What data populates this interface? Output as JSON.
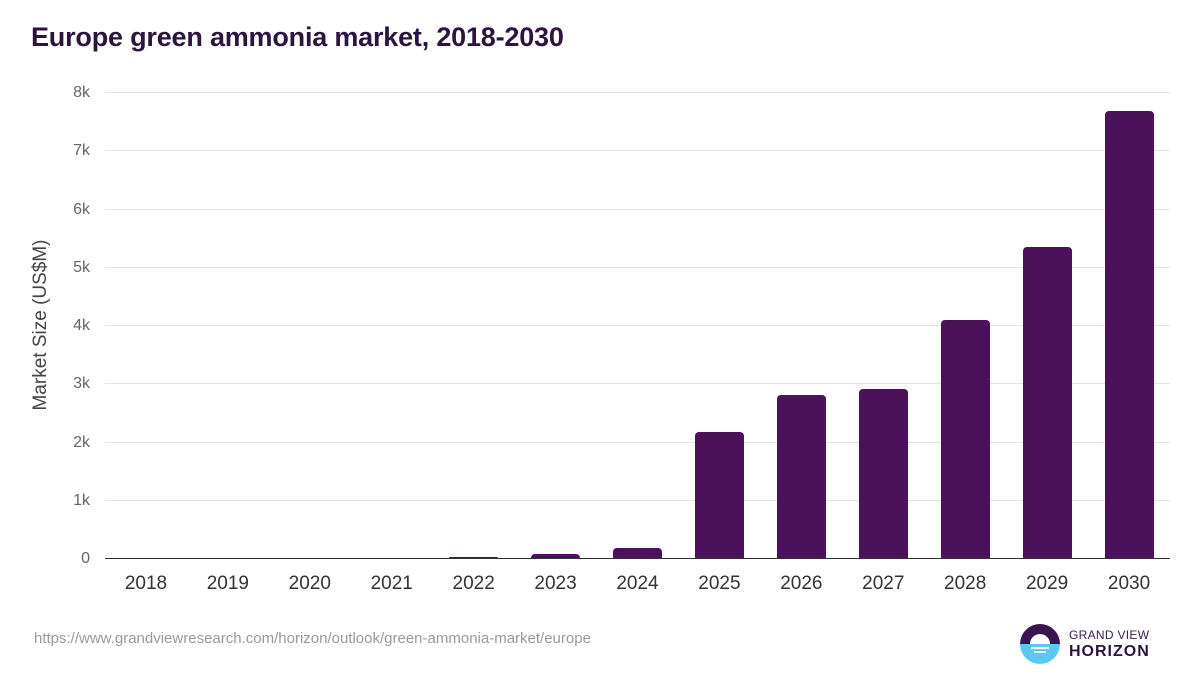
{
  "title": "Europe green ammonia market, 2018-2030",
  "source_url": "https://www.grandviewresearch.com/horizon/outlook/green-ammonia-market/europe",
  "logo": {
    "line1": "GRAND VIEW",
    "line2": "HORIZON",
    "icon": "horizon-sun-icon",
    "colors": {
      "dark": "#3a1550",
      "light": "#5ac8f0"
    }
  },
  "colors": {
    "bar": "#4b115a",
    "title": "#2d1340",
    "grid": "#e3e3e3",
    "axis": "#333333"
  },
  "chart_data": {
    "type": "bar",
    "title": "Europe green ammonia market, 2018-2030",
    "xlabel": "",
    "ylabel": "Market Size (US$M)",
    "ylim": [
      0,
      8000
    ],
    "yticks": [
      0,
      1000,
      2000,
      3000,
      4000,
      5000,
      6000,
      7000,
      8000
    ],
    "ytick_labels": [
      "0",
      "1k",
      "2k",
      "3k",
      "4k",
      "5k",
      "6k",
      "7k",
      "8k"
    ],
    "grid": true,
    "legend": null,
    "categories": [
      "2018",
      "2019",
      "2020",
      "2021",
      "2022",
      "2023",
      "2024",
      "2025",
      "2026",
      "2027",
      "2028",
      "2029",
      "2030"
    ],
    "values": [
      0,
      0,
      0,
      0,
      20,
      70,
      170,
      2160,
      2800,
      2900,
      4090,
      5340,
      7670
    ]
  }
}
